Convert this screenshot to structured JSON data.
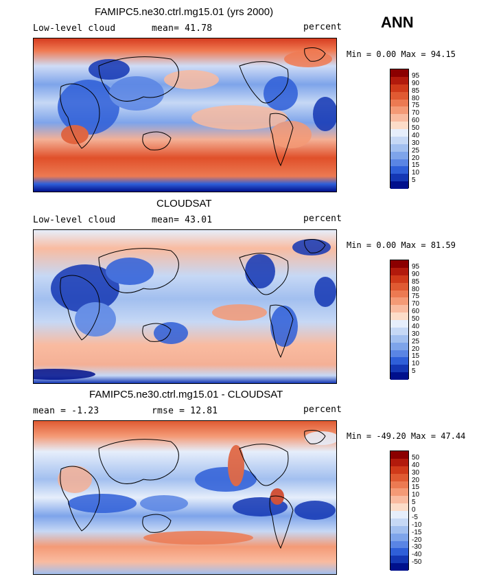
{
  "season": "ANN",
  "panels": [
    {
      "title": "FAMIPC5.ne30.ctrl.mg15.01 (yrs 2000)",
      "left_label": "Low-level cloud",
      "center_label": "mean=  41.78",
      "right_label": "percent",
      "minmax": "Min =   0.00 Max =  94.15",
      "colorbar": {
        "labels": [
          "95",
          "90",
          "85",
          "80",
          "75",
          "70",
          "60",
          "50",
          "40",
          "30",
          "25",
          "20",
          "15",
          "10",
          "5"
        ],
        "colors": [
          "#8b0000",
          "#b21a0c",
          "#d03a1a",
          "#e05a32",
          "#ec7a52",
          "#f49a76",
          "#f9bba0",
          "#fcdcc8",
          "#e6eefb",
          "#c6d8f5",
          "#a2bfef",
          "#7ea4ea",
          "#5a85e4",
          "#2f5fd8",
          "#1437b4",
          "#00108c"
        ]
      }
    },
    {
      "title": "CLOUDSAT",
      "left_label": "Low-level cloud",
      "center_label": "mean=  43.01",
      "right_label": "percent",
      "minmax": "Min =   0.00 Max =  81.59",
      "colorbar": {
        "labels": [
          "95",
          "90",
          "85",
          "80",
          "75",
          "70",
          "60",
          "50",
          "40",
          "30",
          "25",
          "20",
          "15",
          "10",
          "5"
        ],
        "colors": [
          "#8b0000",
          "#b21a0c",
          "#d03a1a",
          "#e05a32",
          "#ec7a52",
          "#f49a76",
          "#f9bba0",
          "#fcdcc8",
          "#e6eefb",
          "#c6d8f5",
          "#a2bfef",
          "#7ea4ea",
          "#5a85e4",
          "#2f5fd8",
          "#1437b4",
          "#00108c"
        ]
      }
    },
    {
      "title": "FAMIPC5.ne30.ctrl.mg15.01 - CLOUDSAT",
      "left_label": "mean =  -1.23",
      "center_label": "rmse =  12.81",
      "right_label": "percent",
      "minmax": "Min = -49.20 Max =  47.44",
      "colorbar": {
        "labels": [
          "50",
          "40",
          "30",
          "20",
          "15",
          "10",
          "5",
          "0",
          "-5",
          "-10",
          "-15",
          "-20",
          "-30",
          "-40",
          "-50"
        ],
        "colors": [
          "#8b0000",
          "#b21a0c",
          "#d03a1a",
          "#e05a32",
          "#ec7a52",
          "#f49a76",
          "#f9bba0",
          "#fcdcc8",
          "#e6eefb",
          "#c6d8f5",
          "#a2bfef",
          "#7ea4ea",
          "#5a85e4",
          "#2f5fd8",
          "#1437b4",
          "#00108c"
        ]
      }
    }
  ]
}
